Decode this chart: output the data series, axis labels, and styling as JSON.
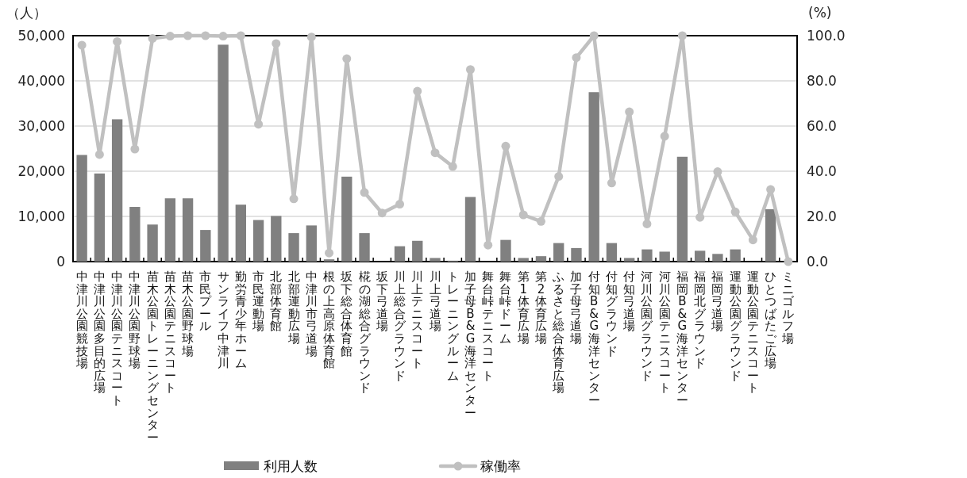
{
  "chart_data": {
    "type": "bar",
    "ylabel": "（人）",
    "y2label": "(%)",
    "categories": [
      "中津川公園競技場",
      "中津川公園多目的広場",
      "中津川公園テニスコート",
      "中津川公園野球場",
      "苗木公園トレーニングセンター",
      "苗木公園テニスコート",
      "苗木公園野球場",
      "市民プール",
      "サンライフ中津川",
      "勤労青少年ホーム",
      "市民運動場",
      "北部体育館",
      "北部運動広場",
      "中津川市弓道場",
      "根の上高原体育館",
      "坂下総合体育館",
      "椛の湖総合グラウンド",
      "坂下弓道場",
      "川上総合グラウンド",
      "川上テニスコート",
      "川上弓道場",
      "トレーニングルーム",
      "加子母B&G海洋センター",
      "舞台峠テニスコート",
      "舞台峠ドーム",
      "第1体育広場",
      "第2体育広場",
      "ふるさと総合体育広場",
      "加子母弓道場",
      "付知B&G海洋センター",
      "付知グラウンド",
      "付知弓道場",
      "河川公園グラウンド",
      "河川公園テニスコート",
      "福岡B&G海洋センター",
      "福岡北グラウンド",
      "福岡弓道場",
      "運動公園グラウンド",
      "運動公園テニスコート",
      "ひとつばたご広場",
      "ミニゴルフ場"
    ],
    "series": [
      {
        "name": "利用人数",
        "color": "#808080",
        "values": [
          23600,
          19500,
          31500,
          12100,
          8200,
          14000,
          14000,
          7000,
          48000,
          12600,
          9200,
          10100,
          6300,
          8000,
          500,
          18800,
          6300,
          0,
          3400,
          4600,
          800,
          200,
          14300,
          0,
          4800,
          800,
          1200,
          4100,
          3000,
          37500,
          4100,
          800,
          2700,
          2200,
          23200,
          2400,
          1700,
          2700,
          0,
          11600,
          0
        ]
      },
      {
        "name": "稼働率",
        "type": "line",
        "axis": "y2",
        "color": "#c0c0c0",
        "marker": "circle",
        "values": [
          95.8,
          47.4,
          97.4,
          49.8,
          98.8,
          99.8,
          100,
          100,
          99.8,
          100,
          60.8,
          96.5,
          27.8,
          99.4,
          3.8,
          89.8,
          30.6,
          21.5,
          25.4,
          75.4,
          48.2,
          42.1,
          85.0,
          7.3,
          51.1,
          20.7,
          17.8,
          37.7,
          90.3,
          100,
          34.8,
          66.3,
          16.7,
          55.5,
          100,
          19.6,
          39.8,
          22.0,
          9.6,
          31.9,
          0
        ]
      }
    ],
    "ylim": [
      0,
      50000
    ],
    "yticks": [
      0,
      {
        "value": 10000,
        "label": "10,000"
      },
      {
        "value": 20000,
        "label": "20,000"
      },
      {
        "value": 30000,
        "label": "30,000"
      },
      {
        "value": 40000,
        "label": "40,000"
      },
      {
        "value": 50000,
        "label": "50,000"
      }
    ],
    "y2lim": [
      0,
      100
    ],
    "y2ticks": [
      {
        "value": 0,
        "label": "0.0"
      },
      {
        "value": 20,
        "label": "20.0"
      },
      {
        "value": 40,
        "label": "40.0"
      },
      {
        "value": 60,
        "label": "60.0"
      },
      {
        "value": 80,
        "label": "80.0"
      },
      {
        "value": 100,
        "label": "100.0"
      }
    ],
    "grid": "y",
    "legend": "bottom"
  }
}
